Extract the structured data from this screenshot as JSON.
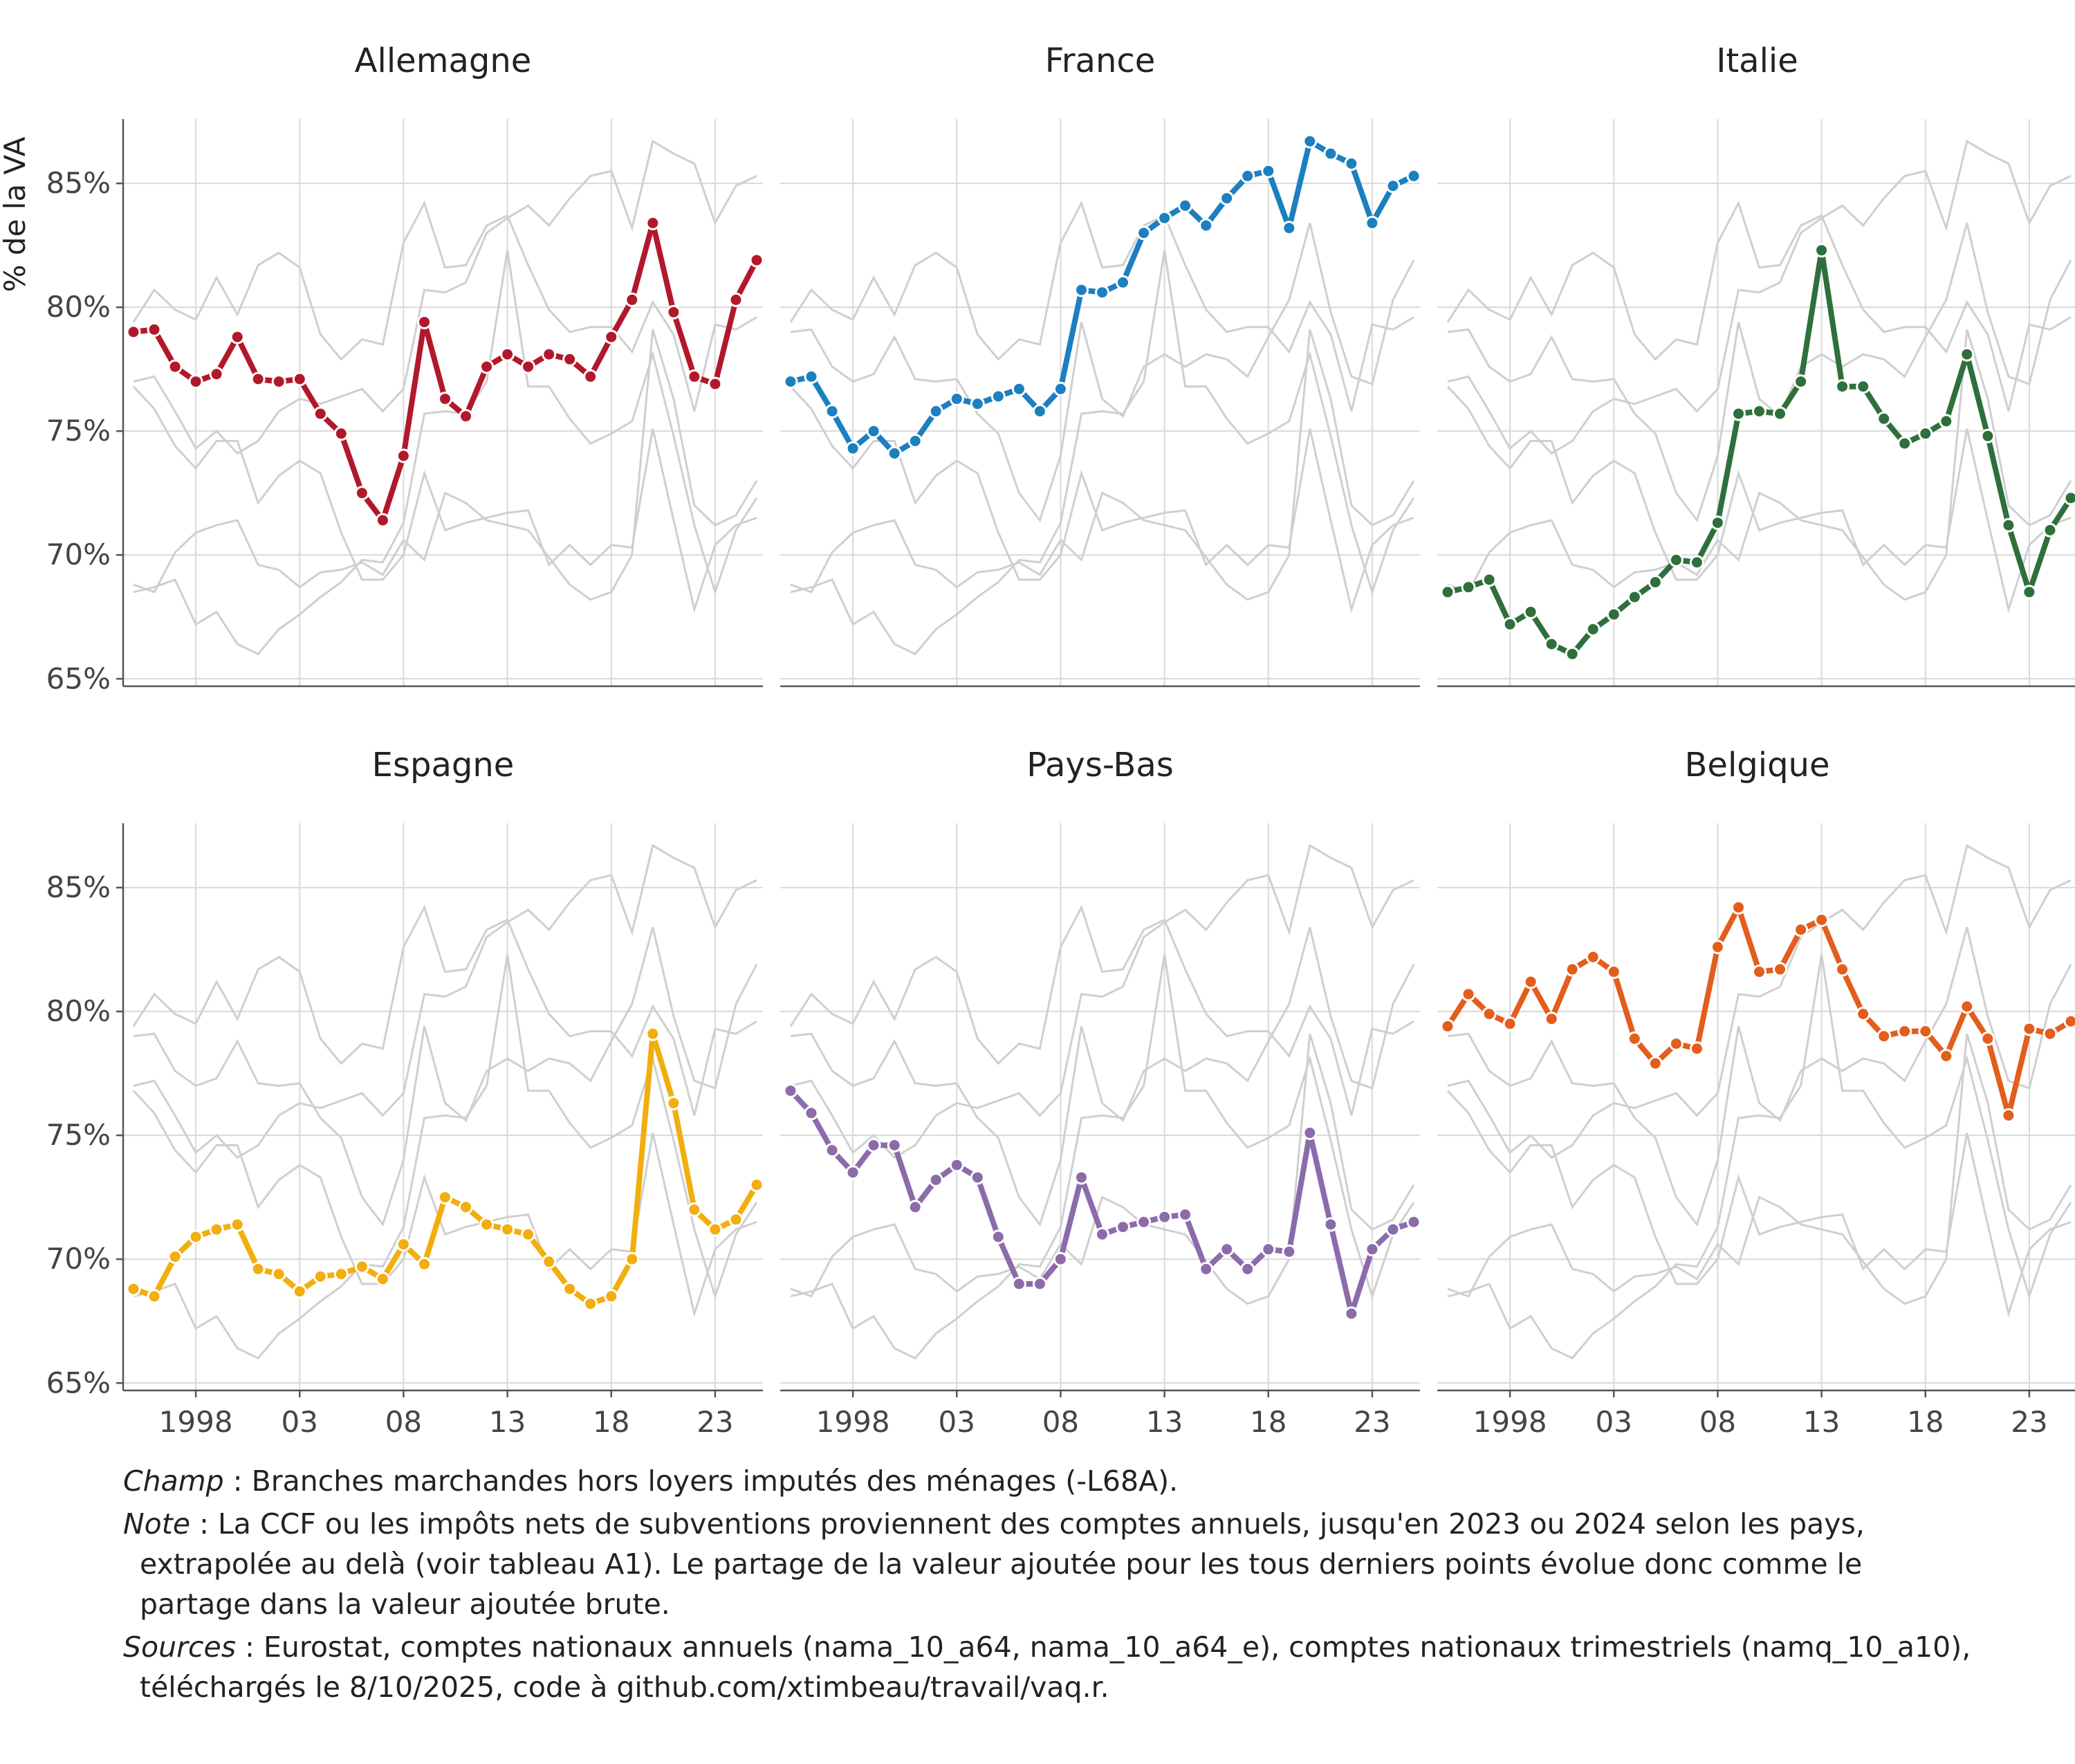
{
  "chart_data": {
    "type": "line",
    "layout": "small-multiples-3x2",
    "ylabel": "% de la VA",
    "y_ticks": [
      65,
      70,
      75,
      80,
      85
    ],
    "y_tick_labels": [
      "65%",
      "70%",
      "75%",
      "80%",
      "85%"
    ],
    "ylim": [
      64.7,
      87.6
    ],
    "xlim": [
      1994.5,
      2025.3
    ],
    "x_ticks": [
      1998,
      2003,
      2008,
      2013,
      2018,
      2023
    ],
    "x_tick_labels": [
      "1998",
      "03",
      "08",
      "13",
      "18",
      "23"
    ],
    "grid": true,
    "x": [
      1995,
      1996,
      1997,
      1998,
      1999,
      2000,
      2001,
      2002,
      2003,
      2004,
      2005,
      2006,
      2007,
      2008,
      2009,
      2010,
      2011,
      2012,
      2013,
      2014,
      2015,
      2016,
      2017,
      2018,
      2019,
      2020,
      2021,
      2022,
      2023,
      2024
    ],
    "series": [
      {
        "name": "Allemagne",
        "color": "#b2182b",
        "values": [
          79.0,
          79.1,
          77.6,
          77.0,
          77.3,
          78.8,
          77.1,
          77.0,
          77.1,
          75.7,
          74.9,
          72.5,
          71.4,
          74.0,
          79.4,
          76.3,
          75.6,
          77.6,
          78.1,
          77.6,
          78.1,
          77.9,
          77.2,
          78.8,
          80.3,
          83.4,
          79.8,
          77.2,
          76.9,
          80.3
        ]
      },
      {
        "name": "France",
        "color": "#1b7fc0",
        "values": [
          77.0,
          77.2,
          75.8,
          74.3,
          75.0,
          74.1,
          74.6,
          75.8,
          76.3,
          76.1,
          76.4,
          76.7,
          75.8,
          76.7,
          80.7,
          80.6,
          81.0,
          83.0,
          83.6,
          84.1,
          83.3,
          84.4,
          85.3,
          85.5,
          83.2,
          86.7,
          86.2,
          85.8,
          83.4,
          84.9
        ]
      },
      {
        "name": "Italie",
        "color": "#2e6f3b",
        "values": [
          68.5,
          68.7,
          69.0,
          67.2,
          67.7,
          66.4,
          66.0,
          67.0,
          67.6,
          68.3,
          68.9,
          69.8,
          69.7,
          71.3,
          75.7,
          75.8,
          75.7,
          77.0,
          82.3,
          76.8,
          76.8,
          75.5,
          74.5,
          74.9,
          75.4,
          78.1,
          74.8,
          71.2,
          68.5,
          71.0
        ]
      },
      {
        "name": "Espagne",
        "color": "#f2ae0e",
        "values": [
          68.8,
          68.5,
          70.1,
          70.9,
          71.2,
          71.4,
          69.6,
          69.4,
          68.7,
          69.3,
          69.4,
          69.7,
          69.2,
          70.6,
          69.8,
          72.5,
          72.1,
          71.4,
          71.2,
          71.0,
          69.9,
          68.8,
          68.2,
          68.5,
          70.0,
          79.1,
          76.3,
          72.0,
          71.2,
          71.6
        ]
      },
      {
        "name": "Pays-Bas",
        "color": "#8c6bab",
        "values": [
          76.8,
          75.9,
          74.4,
          73.5,
          74.6,
          74.6,
          72.1,
          73.2,
          73.8,
          73.3,
          70.9,
          69.0,
          69.0,
          70.0,
          73.3,
          71.0,
          71.3,
          71.5,
          71.7,
          71.8,
          69.6,
          70.4,
          69.6,
          70.4,
          70.3,
          75.1,
          71.4,
          67.8,
          70.4,
          71.2
        ]
      },
      {
        "name": "Belgique",
        "color": "#e35d1c",
        "values": [
          79.4,
          80.7,
          79.9,
          79.5,
          81.2,
          79.7,
          81.7,
          82.2,
          81.6,
          78.9,
          77.9,
          78.7,
          78.5,
          82.6,
          84.2,
          81.6,
          81.7,
          83.3,
          83.7,
          81.7,
          79.9,
          79.0,
          79.2,
          79.2,
          78.2,
          80.2,
          78.9,
          75.8,
          79.3,
          79.1
        ]
      }
    ],
    "series_extra_last_point": {
      "Allemagne": [
        2025,
        81.9
      ],
      "France": [
        2025,
        85.3
      ],
      "Italie": [
        2025,
        72.3
      ],
      "Espagne": [
        2025,
        73.0
      ],
      "Pays-Bas": [
        2025,
        71.5
      ],
      "Belgique": [
        2025,
        79.6
      ]
    }
  },
  "notes": [
    {
      "key": "Champ",
      "sep": " : ",
      "lines": [
        "Branches marchandes hors loyers imputés des ménages (-L68A)."
      ]
    },
    {
      "key": "Note",
      "sep": " : ",
      "lines": [
        "La CCF ou les impôts nets de subventions proviennent des comptes annuels, jusqu'en 2023 ou 2024 selon les pays,",
        "extrapolée au delà (voir tableau A1). Le partage de la valeur ajoutée pour les tous derniers points évolue donc comme le",
        "partage dans la valeur ajoutée brute."
      ]
    },
    {
      "key": "Sources",
      "sep": " : ",
      "lines": [
        "Eurostat, comptes nationaux annuels (nama_10_a64, nama_10_a64_e), comptes nationaux trimestriels (namq_10_a10),",
        "téléchargés le 8/10/2025, code à github.com/xtimbeau/travail/vaq.r."
      ]
    }
  ]
}
